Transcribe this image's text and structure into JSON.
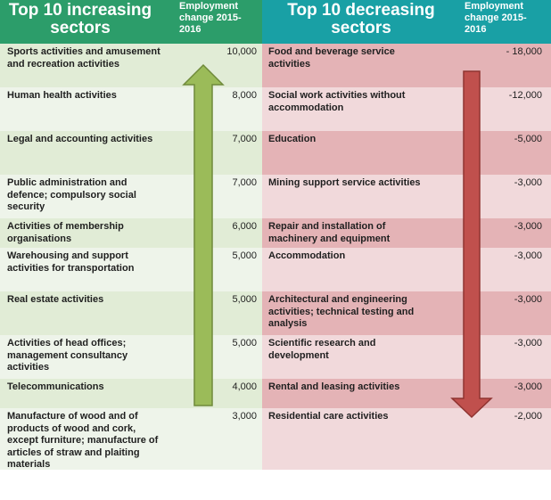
{
  "left": {
    "title_line1": "Top 10 increasing",
    "title_line2": "sectors",
    "header_value_line1": "Employment",
    "header_value_line2": "change 2015-",
    "header_value_line3": "2016",
    "rows": [
      {
        "label": "Sports activities and amusement and recreation activities",
        "value": "10,000"
      },
      {
        "label": "Human health activities",
        "value": "8,000"
      },
      {
        "label": "Legal and accounting activities",
        "value": "7,000"
      },
      {
        "label": "Public administration and defence; compulsory social security",
        "value": "7,000"
      },
      {
        "label": "Activities of membership organisations",
        "value": "6,000"
      },
      {
        "label": "Warehousing and support activities for transportation",
        "value": "5,000"
      },
      {
        "label": "Real estate activities",
        "value": "5,000"
      },
      {
        "label": "Activities of head offices; management consultancy activities",
        "value": "5,000"
      },
      {
        "label": "Telecommunications",
        "value": "4,000"
      },
      {
        "label": "Manufacture of wood and of products of wood and cork, except furniture; manufacture of articles of straw and plaiting materials",
        "value": "3,000"
      }
    ]
  },
  "right": {
    "title_line1": "Top 10 decreasing",
    "title_line2": "sectors",
    "header_value_line1": "Employment",
    "header_value_line2": "change 2015-",
    "header_value_line3": "2016",
    "rows": [
      {
        "label": "Food  and beverage service activities",
        "value": "- 18,000"
      },
      {
        "label": "Social work activities without accommodation",
        "value": "-12,000"
      },
      {
        "label": "Education",
        "value": "-5,000"
      },
      {
        "label": "Mining support service activities",
        "value": "-3,000"
      },
      {
        "label": "Repair and installation of machinery and equipment",
        "value": "-3,000"
      },
      {
        "label": "Accommodation",
        "value": "-3,000"
      },
      {
        "label": "Architectural and engineering activities; technical testing and analysis",
        "value": "-3,000"
      },
      {
        "label": "Scientific research and development",
        "value": "-3,000"
      },
      {
        "label": "Rental and leasing activities",
        "value": "-3,000"
      },
      {
        "label": "Residential care activities",
        "value": "-2,000"
      }
    ]
  },
  "colors": {
    "header_left": "#2c9d6a",
    "header_right": "#19a0a5",
    "row_left_even": "#e1ecd6",
    "row_left_odd": "#eef4ea",
    "row_right_even": "#e4b3b6",
    "row_right_odd": "#f1d9db",
    "arrow_up": "#9bbb59",
    "arrow_down": "#c0504d"
  },
  "chart_data": {
    "type": "table",
    "columns": [
      "Top 10 increasing sectors",
      "Employment change 2015-2016",
      "Top 10 decreasing sectors",
      "Employment change 2015-2016"
    ],
    "increasing": {
      "categories": [
        "Sports activities and amusement and recreation activities",
        "Human health activities",
        "Legal and accounting activities",
        "Public administration and defence; compulsory social security",
        "Activities of membership organisations",
        "Warehousing and support activities for transportation",
        "Real estate activities",
        "Activities of head offices; management consultancy activities",
        "Telecommunications",
        "Manufacture of wood and of products of wood and cork, except furniture; manufacture of articles of straw and plaiting materials"
      ],
      "values": [
        10000,
        8000,
        7000,
        7000,
        6000,
        5000,
        5000,
        5000,
        4000,
        3000
      ]
    },
    "decreasing": {
      "categories": [
        "Food  and beverage service activities",
        "Social work activities without accommodation",
        "Education",
        "Mining support service activities",
        "Repair and installation of machinery and equipment",
        "Accommodation",
        "Architectural and engineering activities; technical testing and analysis",
        "Scientific research and development",
        "Rental and leasing activities",
        "Residential care activities"
      ],
      "values": [
        -18000,
        -12000,
        -5000,
        -3000,
        -3000,
        -3000,
        -3000,
        -3000,
        -3000,
        -2000
      ]
    }
  }
}
